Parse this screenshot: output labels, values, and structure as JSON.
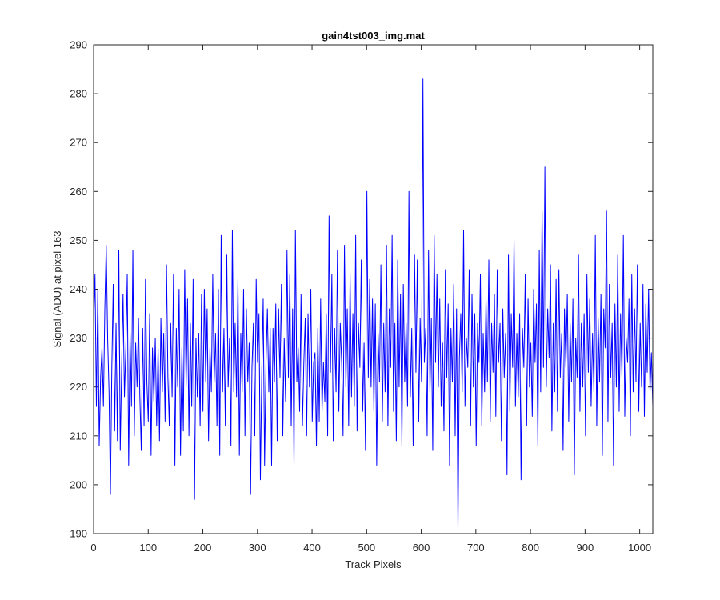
{
  "chart_data": {
    "type": "line",
    "title": "gain4tst003_img.mat",
    "xlabel": "Track Pixels",
    "ylabel": "Signal (ADU) at pixel 163",
    "xlim": [
      0,
      1024
    ],
    "ylim": [
      190,
      290
    ],
    "xticks": [
      0,
      100,
      200,
      300,
      400,
      500,
      600,
      700,
      800,
      900,
      1000
    ],
    "yticks": [
      190,
      200,
      210,
      220,
      230,
      240,
      250,
      260,
      270,
      280,
      290
    ],
    "grid": false,
    "legend": false,
    "series_color": "#0000ff",
    "series": [
      {
        "values": [
          233,
          243,
          216,
          240,
          208,
          222,
          228,
          216,
          236,
          249,
          230,
          219,
          198,
          224,
          241,
          211,
          233,
          209,
          248,
          207,
          224,
          239,
          218,
          228,
          243,
          204,
          231,
          216,
          248,
          210,
          229,
          220,
          234,
          218,
          207,
          232,
          212,
          242,
          221,
          213,
          235,
          206,
          228,
          217,
          230,
          212,
          228,
          209,
          234,
          219,
          231,
          213,
          245,
          222,
          212,
          233,
          218,
          243,
          204,
          232,
          220,
          240,
          206,
          228,
          211,
          244,
          220,
          238,
          210,
          233,
          216,
          242,
          197,
          230,
          218,
          231,
          212,
          239,
          215,
          240,
          221,
          236,
          209,
          228,
          219,
          243,
          221,
          231,
          212,
          240,
          206,
          251,
          219,
          232,
          212,
          247,
          220,
          230,
          208,
          252,
          219,
          233,
          218,
          242,
          206,
          231,
          219,
          240,
          210,
          236,
          221,
          229,
          198,
          224,
          233,
          210,
          242,
          225,
          235,
          201,
          223,
          238,
          204,
          225,
          236,
          219,
          232,
          204,
          232,
          221,
          237,
          209,
          236,
          222,
          241,
          210,
          230,
          217,
          248,
          222,
          243,
          212,
          236,
          204,
          252,
          221,
          228,
          215,
          239,
          212,
          225,
          234,
          210,
          235,
          220,
          240,
          213,
          225,
          227,
          208,
          232,
          213,
          238,
          215,
          225,
          217,
          235,
          210,
          255,
          223,
          243,
          209,
          232,
          219,
          248,
          215,
          233,
          225,
          210,
          249,
          220,
          236,
          212,
          243,
          218,
          235,
          216,
          251,
          211,
          233,
          224,
          246,
          215,
          229,
          207,
          260,
          222,
          242,
          220,
          238,
          215,
          237,
          204,
          231,
          221,
          245,
          213,
          233,
          219,
          249,
          212,
          236,
          224,
          251,
          215,
          233,
          209,
          246,
          220,
          239,
          208,
          241,
          221,
          233,
          216,
          260,
          218,
          232,
          208,
          247,
          223,
          246,
          213,
          234,
          221,
          283,
          225,
          232,
          210,
          248,
          219,
          234,
          207,
          251,
          225,
          243,
          220,
          238,
          216,
          229,
          211,
          244,
          222,
          237,
          204,
          232,
          221,
          241,
          210,
          236,
          191,
          226,
          235,
          219,
          252,
          216,
          230,
          224,
          244,
          212,
          239,
          220,
          235,
          208,
          233,
          225,
          243,
          212,
          231,
          219,
          238,
          221,
          246,
          213,
          233,
          223,
          239,
          214,
          244,
          225,
          233,
          209,
          236,
          222,
          231,
          202,
          247,
          215,
          235,
          224,
          250,
          216,
          231,
          218,
          235,
          201,
          232,
          224,
          243,
          212,
          238,
          220,
          229,
          214,
          240,
          225,
          237,
          208,
          248,
          219,
          256,
          224,
          265,
          220,
          236,
          226,
          245,
          211,
          233,
          219,
          242,
          215,
          244,
          222,
          231,
          207,
          236,
          224,
          239,
          213,
          233,
          221,
          238,
          202,
          230,
          222,
          247,
          215,
          233,
          220,
          235,
          210,
          243,
          223,
          238,
          216,
          231,
          219,
          251,
          212,
          234,
          221,
          239,
          206,
          236,
          228,
          256,
          213,
          241,
          222,
          233,
          204,
          237,
          220,
          247,
          215,
          235,
          222,
          251,
          214,
          230,
          225,
          238,
          210,
          243,
          219,
          236,
          221,
          245,
          215,
          233,
          220,
          241,
          214,
          237,
          223,
          240,
          219,
          227,
          216
        ]
      }
    ]
  }
}
